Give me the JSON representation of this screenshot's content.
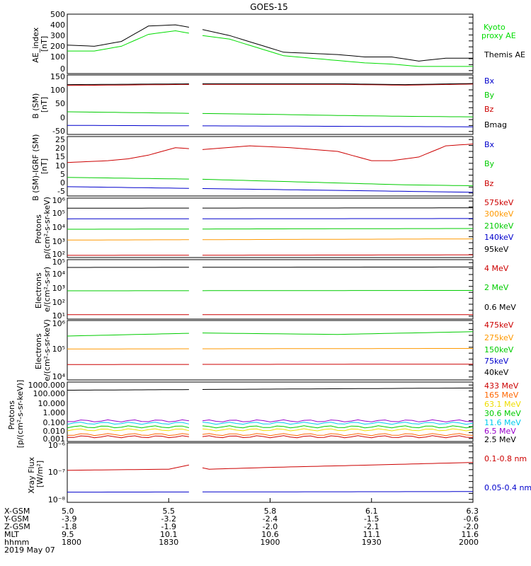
{
  "title": "GOES-15",
  "chart_data": [
    {
      "type": "line",
      "ylabel": "AE_index [nT]",
      "ylim": [
        0,
        500
      ],
      "yticks": [
        "0",
        "100",
        "200",
        "300",
        "400",
        "500"
      ],
      "series": [
        {
          "name": "Kyoto proxy AE",
          "color": "#00dd00",
          "x": [
            0,
            4,
            8,
            12,
            16,
            20,
            24,
            28,
            32,
            36,
            40,
            44,
            48,
            52,
            56,
            60
          ],
          "values": [
            190,
            190,
            230,
            330,
            360,
            320,
            290,
            220,
            150,
            130,
            110,
            90,
            80,
            60,
            60,
            60
          ]
        },
        {
          "name": "Themis AE",
          "color": "#000000",
          "x": [
            0,
            4,
            8,
            12,
            16,
            20,
            24,
            28,
            32,
            36,
            40,
            44,
            48,
            52,
            56,
            60
          ],
          "values": [
            240,
            230,
            270,
            400,
            410,
            370,
            320,
            250,
            180,
            170,
            160,
            140,
            140,
            105,
            130,
            130
          ]
        }
      ]
    },
    {
      "type": "line",
      "ylabel": "B (SM) [nT]",
      "ylim": [
        -60,
        150
      ],
      "yticks": [
        "-50",
        "0",
        "50",
        "100",
        "150"
      ],
      "series": [
        {
          "name": "Bx",
          "color": "#0000cc",
          "x": [
            0,
            60
          ],
          "values": [
            -28,
            -33
          ]
        },
        {
          "name": "By",
          "color": "#00cc00",
          "x": [
            0,
            10,
            20,
            30,
            40,
            50,
            60
          ],
          "values": [
            20,
            17,
            14,
            11,
            7,
            4,
            2
          ]
        },
        {
          "name": "Bz",
          "color": "#cc0000",
          "x": [
            0,
            20,
            40,
            50,
            60
          ],
          "values": [
            113,
            117,
            117,
            114,
            118
          ]
        },
        {
          "name": "Bmag",
          "color": "#000000",
          "x": [
            0,
            20,
            40,
            50,
            60
          ],
          "values": [
            116,
            119,
            119,
            116,
            120
          ]
        }
      ]
    },
    {
      "type": "line",
      "ylabel": "B (SM)-IGRF (SM) [nT]",
      "ylim": [
        -7,
        25
      ],
      "yticks": [
        "-5",
        "0",
        "5",
        "10",
        "15",
        "20",
        "25"
      ],
      "series": [
        {
          "name": "Bx",
          "color": "#0000cc",
          "x": [
            0,
            10,
            20,
            30,
            40,
            50,
            60
          ],
          "values": [
            -2,
            -2.5,
            -3,
            -3.5,
            -4,
            -4.5,
            -5
          ]
        },
        {
          "name": "By",
          "color": "#00cc00",
          "x": [
            0,
            10,
            20,
            30,
            40,
            50,
            60
          ],
          "values": [
            3,
            2.5,
            2,
            1,
            0,
            -1,
            -1.5
          ]
        },
        {
          "name": "Bz",
          "color": "#cc0000",
          "x": [
            0,
            6,
            9,
            12,
            16,
            20,
            27,
            33,
            40,
            45,
            48,
            52,
            56,
            60
          ],
          "values": [
            11,
            12,
            13,
            15,
            19,
            18,
            20,
            19,
            17,
            12,
            12,
            14,
            20,
            21
          ]
        }
      ]
    },
    {
      "type": "line",
      "ylabel": "Protons p/(cm²-s-sr-keV)",
      "scale": "log",
      "ylim": [
        100.0,
        1000000.0
      ],
      "yticks": [
        "10²",
        "10³",
        "10⁴",
        "10⁵",
        "10⁶"
      ],
      "series": [
        {
          "name": "575keV",
          "color": "#cc0000",
          "x": [
            0,
            60
          ],
          "values": [
            140,
            150
          ]
        },
        {
          "name": "300keV",
          "color": "#ff9900",
          "x": [
            0,
            60
          ],
          "values": [
            1500,
            1800
          ]
        },
        {
          "name": "210keV",
          "color": "#00cc00",
          "x": [
            0,
            60
          ],
          "values": [
            8000,
            9000
          ]
        },
        {
          "name": "140keV",
          "color": "#0000cc",
          "x": [
            0,
            60
          ],
          "values": [
            40000,
            42000
          ]
        },
        {
          "name": "95keV",
          "color": "#000000",
          "x": [
            0,
            60
          ],
          "values": [
            210000,
            220000
          ]
        }
      ]
    },
    {
      "type": "line",
      "ylabel": "Electrons e/(cm²-s-sr)",
      "scale": "log",
      "ylim": [
        10.0,
        100000.0
      ],
      "yticks": [
        "10¹",
        "10²",
        "10³",
        "10⁴",
        "10⁵"
      ],
      "series": [
        {
          "name": "4 MeV",
          "color": "#cc0000",
          "x": [
            0,
            60
          ],
          "values": [
            20,
            20
          ]
        },
        {
          "name": "2 MeV",
          "color": "#00cc00",
          "x": [
            0,
            60
          ],
          "values": [
            800,
            850
          ]
        },
        {
          "name": "0.6 MeV",
          "color": "#000000",
          "x": [
            0,
            60
          ],
          "values": [
            30000,
            32000
          ]
        }
      ]
    },
    {
      "type": "line",
      "ylabel": "Electrons e/(cm²-s-sr-keV)",
      "scale": "log",
      "ylim": [
        10000.0,
        1000000.0
      ],
      "yticks": [
        "10⁴",
        "10⁵",
        "10⁶"
      ],
      "series": [
        {
          "name": "475keV",
          "color": "#cc0000",
          "x": [
            0,
            60
          ],
          "values": [
            33000,
            34000
          ]
        },
        {
          "name": "275keV",
          "color": "#ff9900",
          "x": [
            0,
            60
          ],
          "values": [
            110000,
            115000
          ]
        },
        {
          "name": "150keV",
          "color": "#00cc00",
          "x": [
            0,
            20,
            40,
            60
          ],
          "values": [
            300000,
            380000,
            340000,
            420000
          ]
        }
      ]
    },
    {
      "type": "line",
      "ylabel": "Protons [p/(cm²-s-sr-keV)]",
      "scale": "log",
      "ylim": [
        0.001,
        1000
      ],
      "yticks": [
        "0.001",
        "0.010",
        "0.100",
        "1.000",
        "10.000",
        "100.000",
        "1000.000"
      ],
      "series": [
        {
          "name": "433 MeV",
          "color": "#cc0000",
          "x": [
            0,
            60
          ],
          "values": [
            0.003,
            0.003
          ]
        },
        {
          "name": "165 MeV",
          "color": "#ff6600",
          "x": [
            0,
            60
          ],
          "values": [
            0.005,
            0.005
          ]
        },
        {
          "name": "63.1 MeV",
          "color": "#eedd00",
          "x": [
            0,
            60
          ],
          "values": [
            0.015,
            0.015
          ]
        },
        {
          "name": "30.6 MeV",
          "color": "#00cc00",
          "x": [
            0,
            60
          ],
          "values": [
            0.03,
            0.03
          ]
        },
        {
          "name": "11.6 MeV",
          "color": "#00ccee",
          "x": [
            0,
            60
          ],
          "values": [
            0.07,
            0.07
          ]
        },
        {
          "name": "6.5 MeV",
          "color": "#9900cc",
          "x": [
            0,
            60
          ],
          "values": [
            0.12,
            0.12
          ]
        },
        {
          "name": "2.5 MeV",
          "color": "#000000",
          "x": [
            0,
            60
          ],
          "values": [
            150,
            250
          ]
        }
      ]
    },
    {
      "type": "line",
      "ylabel": "Xray Flux [W/m²]",
      "scale": "log",
      "ylim": [
        1e-08,
        1e-06
      ],
      "yticks": [
        "10⁻⁸",
        "10⁻⁷",
        "10⁻⁶"
      ],
      "series": [
        {
          "name": "0.1-0.8 nm",
          "color": "#cc0000",
          "x": [
            0,
            15,
            18,
            21,
            30,
            45,
            60
          ],
          "values": [
            1.2e-07,
            1.3e-07,
            1.8e-07,
            1.3e-07,
            1.5e-07,
            1.8e-07,
            2.2e-07
          ]
        },
        {
          "name": "0.05-0.4 nm",
          "color": "#0000cc",
          "x": [
            0,
            60
          ],
          "values": [
            2.2e-08,
            2.3e-08
          ]
        }
      ]
    }
  ],
  "xaxis": {
    "rows": [
      {
        "label": "X-GSM",
        "values": [
          "5.0",
          "5.5",
          "5.8",
          "6.1",
          "6.3"
        ]
      },
      {
        "label": "Y-GSM",
        "values": [
          "-3.9",
          "-3.2",
          "-2.4",
          "-1.5",
          "-0.6"
        ]
      },
      {
        "label": "Z-GSM",
        "values": [
          "-1.8",
          "-1.9",
          "-2.0",
          "-2.1",
          "-2.0"
        ]
      },
      {
        "label": "MLT",
        "values": [
          "9.5",
          "10.1",
          "10.6",
          "11.1",
          "11.6"
        ]
      },
      {
        "label": "hhmm",
        "values": [
          "1800",
          "1830",
          "1900",
          "1930",
          "2000"
        ]
      }
    ],
    "date": "2019 May 07"
  },
  "panels_text": {
    "p0_ticks": [
      "500",
      "400",
      "300",
      "200",
      "100",
      "0"
    ],
    "p0_ylabel1": "AE_index",
    "p0_ylabel2": "[nT]",
    "p0_leg1": "Kyoto",
    "p0_leg2": "proxy AE",
    "p0_leg3": "Themis AE",
    "p1_ticks": [
      "150",
      "100",
      "50",
      "0",
      "-50"
    ],
    "p1_ylabel1": "B (SM)",
    "p1_ylabel2": "[nT]",
    "p1_legs": [
      "Bx",
      "By",
      "Bz",
      "Bmag"
    ],
    "p2_ticks": [
      "25",
      "20",
      "15",
      "10",
      "5",
      "0",
      "-5"
    ],
    "p2_ylabel1": "B (SM)-IGRF (SM)",
    "p2_ylabel2": "[nT]",
    "p2_legs": [
      "Bx",
      "By",
      "Bz"
    ],
    "p3_ticks": [
      "10⁶",
      "10⁵",
      "10⁴",
      "10³",
      "10²"
    ],
    "p3_ylabel1": "Protons",
    "p3_ylabel2": "p/(cm²-s-sr-keV)",
    "p3_legs": [
      "575keV",
      "300keV",
      "210keV",
      "140keV",
      "95keV"
    ],
    "p4_ticks": [
      "10⁵",
      "10⁴",
      "10³",
      "10²",
      "10¹"
    ],
    "p4_ylabel1": "Electrons",
    "p4_ylabel2": "e/(cm²-s-sr)",
    "p4_legs": [
      "4 MeV",
      "2 MeV",
      "0.6 MeV"
    ],
    "p5_ticks": [
      "10⁶",
      "10⁵",
      "10⁴"
    ],
    "p5_ylabel1": "Electrons",
    "p5_ylabel2": "e/(cm²-s-sr-keV)",
    "p5_legs": [
      "475keV",
      "275keV",
      "150keV",
      "75keV",
      "40keV"
    ],
    "p6_ticks": [
      "1000.000",
      "100.000",
      "10.000",
      "1.000",
      "0.100",
      "0.010",
      "0.001"
    ],
    "p6_ylabel1": "Protons",
    "p6_ylabel2": "[p/(cm²-s-sr-keV)]",
    "p6_legs": [
      "433 MeV",
      "165 MeV",
      "63.1 MeV",
      "30.6 MeV",
      "11.6 MeV",
      "6.5 MeV",
      "2.5 MeV"
    ],
    "p7_ticks": [
      "10⁻⁶",
      "10⁻⁷",
      "10⁻⁸"
    ],
    "p7_ylabel1": "Xray Flux",
    "p7_ylabel2": "[W/m²]",
    "p7_legs": [
      "0.1-0.8 nm",
      "0.05-0.4 nm"
    ]
  }
}
